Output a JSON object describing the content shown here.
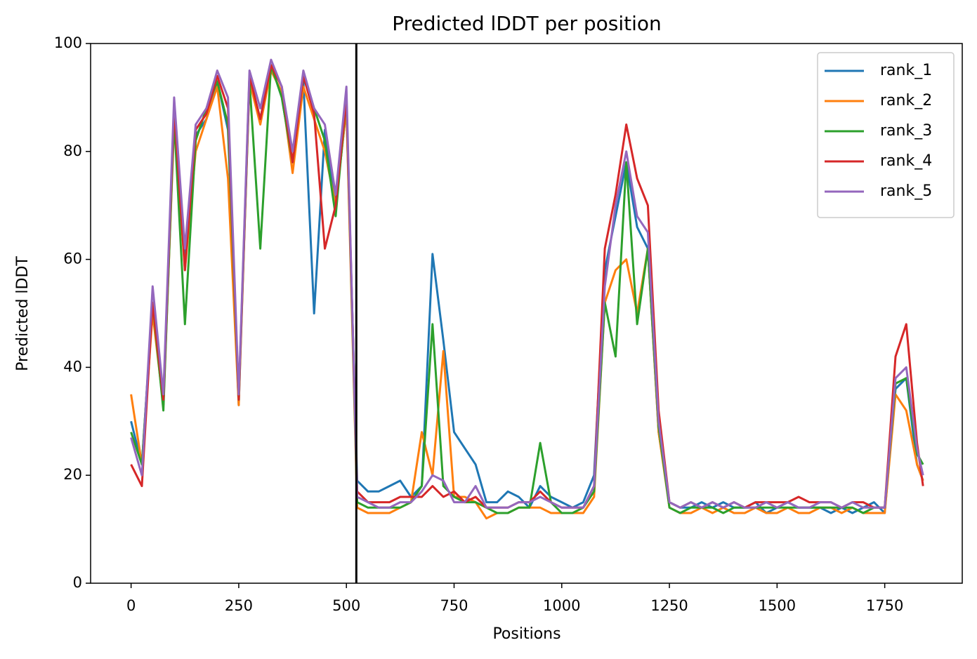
{
  "chart_data": {
    "type": "line",
    "title": "Predicted lDDT per position",
    "xlabel": "Positions",
    "ylabel": "Predicted lDDT",
    "x": [
      0,
      25,
      50,
      75,
      100,
      125,
      150,
      175,
      200,
      225,
      250,
      275,
      300,
      325,
      350,
      375,
      400,
      425,
      450,
      475,
      500,
      525,
      550,
      575,
      600,
      625,
      650,
      675,
      700,
      725,
      750,
      775,
      800,
      825,
      850,
      875,
      900,
      925,
      950,
      975,
      1000,
      1025,
      1050,
      1075,
      1100,
      1125,
      1150,
      1175,
      1200,
      1225,
      1250,
      1275,
      1300,
      1325,
      1350,
      1375,
      1400,
      1425,
      1450,
      1475,
      1500,
      1525,
      1550,
      1575,
      1600,
      1625,
      1650,
      1675,
      1700,
      1725,
      1750,
      1775,
      1800,
      1825,
      1839
    ],
    "series": [
      {
        "name": "rank_1",
        "color": "#1f77b4",
        "values": [
          30,
          22,
          52,
          33,
          88,
          60,
          83,
          86,
          93,
          84,
          33,
          94,
          86,
          96,
          90,
          78,
          93,
          50,
          84,
          70,
          88,
          19,
          17,
          17,
          18,
          19,
          16,
          18,
          61,
          45,
          28,
          25,
          22,
          15,
          15,
          17,
          16,
          14,
          18,
          16,
          15,
          14,
          15,
          20,
          58,
          68,
          78,
          66,
          62,
          28,
          15,
          14,
          14,
          15,
          14,
          15,
          14,
          14,
          15,
          13,
          14,
          15,
          14,
          14,
          14,
          13,
          14,
          13,
          14,
          15,
          13,
          36,
          38,
          22,
          19
        ]
      },
      {
        "name": "rank_2",
        "color": "#ff7f0e",
        "values": [
          35,
          22,
          50,
          33,
          85,
          58,
          80,
          86,
          92,
          75,
          33,
          93,
          85,
          95,
          91,
          76,
          92,
          86,
          80,
          70,
          88,
          14,
          13,
          13,
          13,
          14,
          15,
          28,
          20,
          43,
          16,
          16,
          15,
          12,
          13,
          13,
          14,
          14,
          14,
          13,
          13,
          13,
          13,
          16,
          52,
          58,
          60,
          50,
          62,
          28,
          14,
          13,
          13,
          14,
          13,
          14,
          13,
          13,
          14,
          13,
          13,
          14,
          13,
          13,
          14,
          14,
          13,
          14,
          13,
          13,
          13,
          35,
          32,
          22,
          19
        ]
      },
      {
        "name": "rank_3",
        "color": "#2ca02c",
        "values": [
          28,
          22,
          52,
          32,
          86,
          48,
          82,
          88,
          93,
          85,
          34,
          93,
          62,
          96,
          90,
          78,
          94,
          88,
          82,
          68,
          90,
          15,
          14,
          14,
          14,
          14,
          15,
          18,
          48,
          18,
          16,
          15,
          15,
          14,
          13,
          13,
          14,
          14,
          26,
          15,
          13,
          13,
          14,
          17,
          52,
          42,
          78,
          48,
          62,
          29,
          14,
          13,
          14,
          14,
          14,
          13,
          14,
          14,
          14,
          14,
          14,
          14,
          14,
          14,
          14,
          14,
          14,
          14,
          13,
          14,
          14,
          37,
          38,
          24,
          22
        ]
      },
      {
        "name": "rank_4",
        "color": "#d62728",
        "values": [
          22,
          18,
          52,
          34,
          88,
          58,
          84,
          87,
          94,
          88,
          34,
          94,
          86,
          96,
          92,
          78,
          94,
          87,
          62,
          70,
          90,
          17,
          15,
          15,
          15,
          16,
          16,
          16,
          18,
          16,
          17,
          15,
          16,
          14,
          14,
          14,
          15,
          15,
          17,
          15,
          14,
          14,
          14,
          18,
          62,
          72,
          85,
          75,
          70,
          32,
          15,
          14,
          15,
          14,
          15,
          14,
          15,
          14,
          15,
          15,
          15,
          15,
          16,
          15,
          15,
          15,
          14,
          15,
          15,
          14,
          14,
          42,
          48,
          26,
          18
        ]
      },
      {
        "name": "rank_5",
        "color": "#9467bd",
        "values": [
          27,
          20,
          55,
          35,
          90,
          62,
          85,
          88,
          95,
          90,
          35,
          95,
          88,
          97,
          92,
          80,
          95,
          88,
          85,
          72,
          92,
          16,
          15,
          14,
          14,
          15,
          15,
          17,
          20,
          19,
          15,
          15,
          18,
          14,
          14,
          14,
          15,
          15,
          16,
          15,
          14,
          14,
          14,
          18,
          55,
          70,
          80,
          68,
          65,
          30,
          15,
          14,
          15,
          14,
          15,
          14,
          15,
          14,
          14,
          15,
          14,
          15,
          14,
          14,
          15,
          15,
          14,
          15,
          14,
          14,
          14,
          38,
          40,
          25,
          20
        ]
      }
    ],
    "vlines": [
      523
    ],
    "vline_color": "#000000",
    "xlim": [
      -94,
      1930
    ],
    "ylim": [
      0,
      100
    ],
    "xticks": [
      0,
      250,
      500,
      750,
      1000,
      1250,
      1500,
      1750
    ],
    "yticks": [
      0,
      20,
      40,
      60,
      80,
      100
    ],
    "legend": "upper right"
  }
}
